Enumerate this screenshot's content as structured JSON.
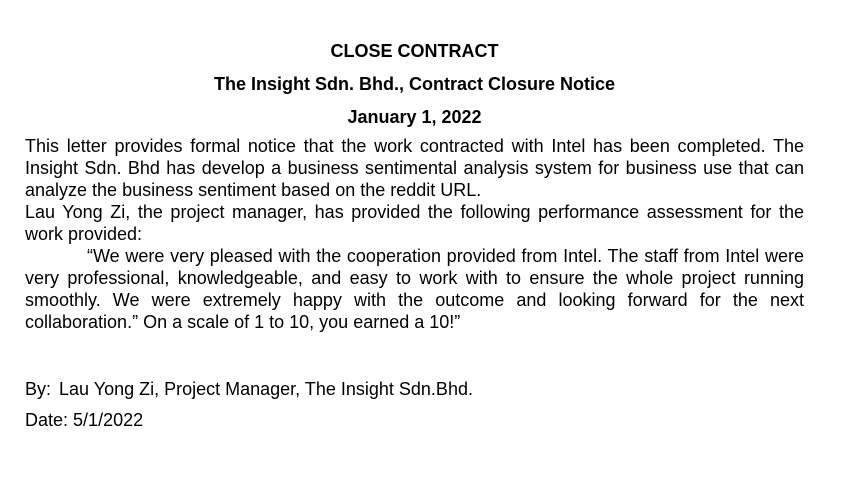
{
  "letter": {
    "title": "CLOSE CONTRACT",
    "subtitle": "The Insight Sdn. Bhd., Contract Closure Notice",
    "date": "January 1, 2022",
    "paragraphs": [
      "This letter provides formal notice that the work contracted with Intel has been completed. The Insight Sdn. Bhd has develop a business sentimental analysis system for business use that can analyze the business sentiment based on the reddit URL.",
      "Lau Yong Zi, the project manager, has provided the following performance assessment for the work provided:"
    ],
    "quote": "“We were very pleased with the cooperation provided from Intel. The staff from Intel were very professional, knowledgeable, and easy to work with to ensure the whole project running smoothly. We were extremely happy with the outcome and looking forward for the next collaboration.” On a scale of 1 to 10, you earned a 10!”",
    "by_label": "By:",
    "by_value": "Lau Yong Zi, Project Manager, The Insight Sdn.Bhd.",
    "date_label": "Date:",
    "date_value": "5/1/2022"
  }
}
